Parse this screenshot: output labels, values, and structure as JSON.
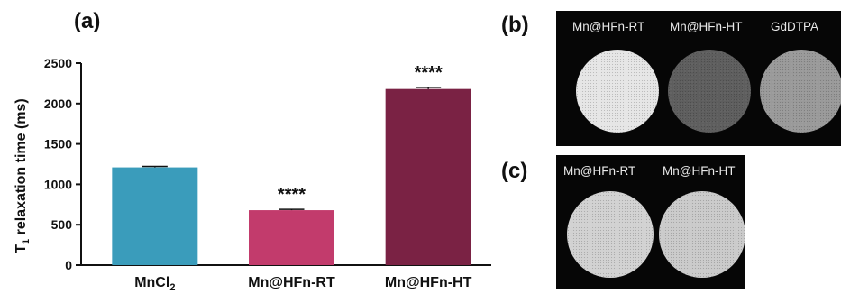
{
  "panels": {
    "a": "(a)",
    "b": "(b)",
    "c": "(c)"
  },
  "chart_data": {
    "type": "bar",
    "title": "",
    "ylabel": "T",
    "ylabel_sub": "1",
    "ylabel_rest": " relaxation time (ms)",
    "ylim": [
      0,
      2500
    ],
    "yticks": [
      0,
      500,
      1000,
      1500,
      2000,
      2500
    ],
    "categories": [
      {
        "main": "MnCl",
        "sub": "2"
      },
      {
        "main": "Mn@HFn-RT",
        "sub": ""
      },
      {
        "main": "Mn@HFn-HT",
        "sub": ""
      }
    ],
    "values": [
      1210,
      680,
      2180
    ],
    "errors": [
      12,
      10,
      20
    ],
    "colors": [
      "#3a9cbb",
      "#c23b6c",
      "#7a2244"
    ],
    "significance": [
      "",
      "****",
      "****"
    ]
  },
  "mri_b": {
    "labels": [
      "Mn@HFn-RT",
      "Mn@HFn-HT",
      "GdDTPA"
    ],
    "intensities": [
      "#e6e6e6",
      "#5e5e5e",
      "#9a9a9a"
    ]
  },
  "mri_c": {
    "labels": [
      "Mn@HFn-RT",
      "Mn@HFn-HT"
    ],
    "intensities": [
      "#d2d2d2",
      "#cbcbcb"
    ]
  }
}
